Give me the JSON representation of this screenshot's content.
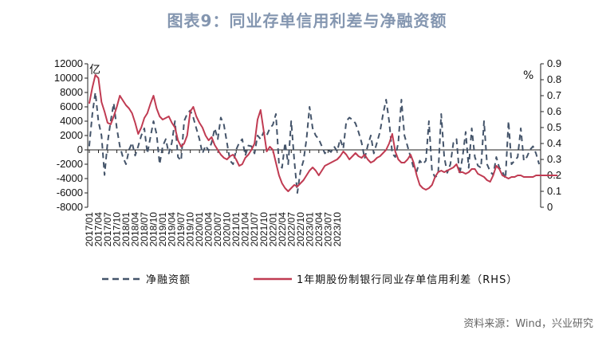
{
  "title": "图表9：同业存单信用利差与净融资额",
  "source": "资料来源：Wind，兴业研究",
  "chart_data": {
    "type": "line",
    "left_unit": "亿",
    "right_unit": "%",
    "left_axis": {
      "min": -8000,
      "max": 12000,
      "step": 2000,
      "ticks": [
        "12000",
        "10000",
        "8000",
        "6000",
        "4000",
        "2000",
        "0",
        "-2000",
        "-4000",
        "-6000",
        "-8000"
      ]
    },
    "right_axis": {
      "min": 0,
      "max": 0.9,
      "step": 0.1,
      "ticks": [
        "0.9",
        "0.8",
        "0.7",
        "0.6",
        "0.5",
        "0.4",
        "0.3",
        "0.2",
        "0.1",
        "0"
      ]
    },
    "x_start": "2017/01",
    "x_ticks": [
      "2017/01",
      "2017/04",
      "2017/07",
      "2017/10",
      "2018/01",
      "2018/04",
      "2018/07",
      "2018/10",
      "2019/01",
      "2019/04",
      "2019/07",
      "2019/10",
      "2020/01",
      "2020/04",
      "2020/07",
      "2020/10",
      "2021/01",
      "2021/04",
      "2021/07",
      "2021/10",
      "2022/01",
      "2022/04",
      "2022/07",
      "2022/10",
      "2023/01",
      "2023/04",
      "2023/07",
      "2023/10"
    ],
    "series": [
      {
        "name": "净融资额",
        "axis": "left",
        "style": "dashed",
        "color": "#44546a",
        "values": [
          500,
          5000,
          8000,
          4000,
          2000,
          -3500,
          1000,
          4000,
          6500,
          3000,
          500,
          -1000,
          -2000,
          0,
          1000,
          -800,
          500,
          2000,
          3000,
          -500,
          1800,
          4000,
          2200,
          -2000,
          500,
          1500,
          -500,
          1000,
          4000,
          -1000,
          -1500,
          4000,
          5000,
          5500,
          4500,
          3000,
          1500,
          -500,
          600,
          -100,
          1000,
          3000,
          1500,
          4500,
          3500,
          1000,
          -1500,
          -2000,
          0,
          1000,
          1500,
          -800,
          600,
          500,
          -500,
          2000,
          1500,
          2500,
          2000,
          3000,
          3500,
          5000,
          -2000,
          -2500,
          1000,
          -2000,
          4000,
          -1500,
          -6000,
          -3000,
          -1500,
          1500,
          6000,
          3000,
          2000,
          1500,
          500,
          -500,
          0,
          -300,
          500,
          -200,
          1500,
          200,
          4000,
          4500,
          4200,
          3700,
          2500,
          1000,
          -1200,
          600,
          2000,
          -500,
          1000,
          2500,
          5000,
          7000,
          4000,
          -500,
          -1000,
          1000,
          7000,
          2000,
          500,
          -1000,
          -2500,
          -3000,
          -1500,
          -2000,
          -1500,
          4000,
          -3000,
          -3800,
          -3500,
          5000,
          -1000,
          -3200,
          -2000,
          1000,
          1500,
          -3500,
          -1000,
          2500,
          -2500,
          3000,
          -1000,
          -2200,
          -2500,
          4000,
          -2000,
          -3000,
          -3500,
          -1000,
          -2500,
          -3000,
          -4000,
          4000,
          -2000,
          -1500,
          -1000,
          3000,
          -1500,
          -1000,
          0,
          500,
          -500,
          -2000
        ]
      },
      {
        "name": "1年期股份制银行同业存单信用利差（RHS）",
        "axis": "right",
        "style": "solid",
        "color": "#c03b52",
        "values": [
          0.65,
          0.75,
          0.83,
          0.81,
          0.66,
          0.6,
          0.53,
          0.52,
          0.57,
          0.63,
          0.7,
          0.67,
          0.64,
          0.62,
          0.59,
          0.53,
          0.46,
          0.5,
          0.56,
          0.59,
          0.65,
          0.7,
          0.62,
          0.57,
          0.55,
          0.56,
          0.57,
          0.53,
          0.5,
          0.42,
          0.38,
          0.4,
          0.45,
          0.6,
          0.63,
          0.57,
          0.53,
          0.5,
          0.45,
          0.42,
          0.44,
          0.39,
          0.36,
          0.33,
          0.31,
          0.3,
          0.32,
          0.33,
          0.3,
          0.26,
          0.27,
          0.31,
          0.33,
          0.36,
          0.4,
          0.55,
          0.61,
          0.48,
          0.35,
          0.38,
          0.36,
          0.28,
          0.2,
          0.15,
          0.12,
          0.1,
          0.12,
          0.14,
          0.13,
          0.15,
          0.17,
          0.2,
          0.23,
          0.25,
          0.23,
          0.2,
          0.23,
          0.26,
          0.27,
          0.28,
          0.29,
          0.3,
          0.32,
          0.35,
          0.33,
          0.3,
          0.32,
          0.34,
          0.32,
          0.31,
          0.33,
          0.3,
          0.28,
          0.29,
          0.31,
          0.32,
          0.34,
          0.36,
          0.4,
          0.46,
          0.35,
          0.3,
          0.28,
          0.28,
          0.3,
          0.33,
          0.28,
          0.2,
          0.14,
          0.12,
          0.11,
          0.12,
          0.14,
          0.19,
          0.22,
          0.23,
          0.22,
          0.23,
          0.24,
          0.25,
          0.27,
          0.22,
          0.22,
          0.21,
          0.22,
          0.24,
          0.24,
          0.21,
          0.2,
          0.19,
          0.17,
          0.16,
          0.2,
          0.26,
          0.24,
          0.2,
          0.19,
          0.18,
          0.19,
          0.19,
          0.2,
          0.2,
          0.19,
          0.19,
          0.19,
          0.19,
          0.2,
          0.2,
          0.2,
          0.2,
          0.2,
          0.2,
          0.2,
          0.2
        ]
      }
    ],
    "legend_position": "bottom"
  }
}
